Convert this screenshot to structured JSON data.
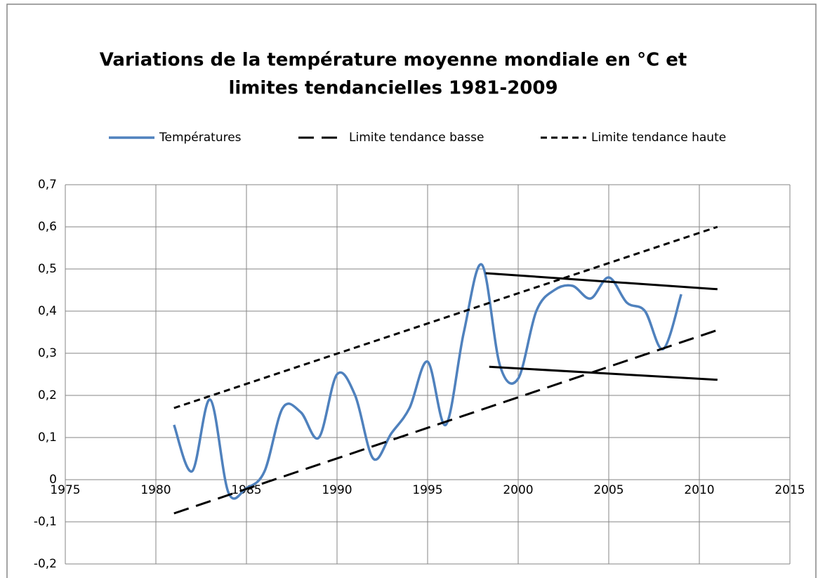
{
  "chart_data": {
    "type": "line",
    "title": [
      "Variations de la température moyenne mondiale en °C et",
      "limites tendancielles 1981-2009"
    ],
    "xlim": [
      1975,
      2015
    ],
    "xticks": [
      1975,
      1980,
      1985,
      1990,
      1995,
      2000,
      2005,
      2010,
      2015
    ],
    "ylim": [
      -0.2,
      0.7
    ],
    "yticks": [
      {
        "value": -0.2,
        "label": "-0,2"
      },
      {
        "value": -0.1,
        "label": "-0,1"
      },
      0,
      {
        "value": 0.1,
        "label": "0,1"
      },
      {
        "value": 0.2,
        "label": "0,2"
      },
      {
        "value": 0.3,
        "label": "0,3"
      },
      {
        "value": 0.4,
        "label": "0,4"
      },
      {
        "value": 0.5,
        "label": "0,5"
      },
      {
        "value": 0.6,
        "label": "0,6"
      },
      {
        "value": 0.7,
        "label": "0,7"
      }
    ],
    "grid": true,
    "legend": "top",
    "series": [
      {
        "name": "Températures",
        "color": "#4f81bd",
        "smooth": true,
        "dash": "solid",
        "x": [
          1981,
          1982,
          1983,
          1984,
          1985,
          1986,
          1987,
          1988,
          1989,
          1990,
          1991,
          1992,
          1993,
          1994,
          1995,
          1996,
          1997,
          1998,
          1999,
          2000,
          2001,
          2002,
          2003,
          2004,
          2005,
          2006,
          2007,
          2008,
          2009
        ],
        "values": [
          0.13,
          0.02,
          0.19,
          -0.03,
          -0.02,
          0.02,
          0.17,
          0.16,
          0.1,
          0.25,
          0.2,
          0.05,
          0.11,
          0.17,
          0.28,
          0.13,
          0.35,
          0.51,
          0.27,
          0.24,
          0.4,
          0.45,
          0.46,
          0.43,
          0.48,
          0.42,
          0.4,
          0.31,
          0.44
        ]
      },
      {
        "name": "Limite tendance basse",
        "color": "#000000",
        "dash": "long",
        "x": [
          1981,
          2011
        ],
        "values": [
          -0.08,
          0.355
        ]
      },
      {
        "name": "Limite tendance haute",
        "color": "#000000",
        "dash": "short",
        "x": [
          1981,
          2011
        ],
        "values": [
          0.17,
          0.6
        ]
      },
      {
        "color": "#000000",
        "dash": "solid",
        "x": [
          1998.2,
          2011
        ],
        "values": [
          0.49,
          0.452
        ]
      },
      {
        "color": "#000000",
        "dash": "solid",
        "x": [
          1998.4,
          2011
        ],
        "values": [
          0.268,
          0.237
        ]
      }
    ]
  }
}
